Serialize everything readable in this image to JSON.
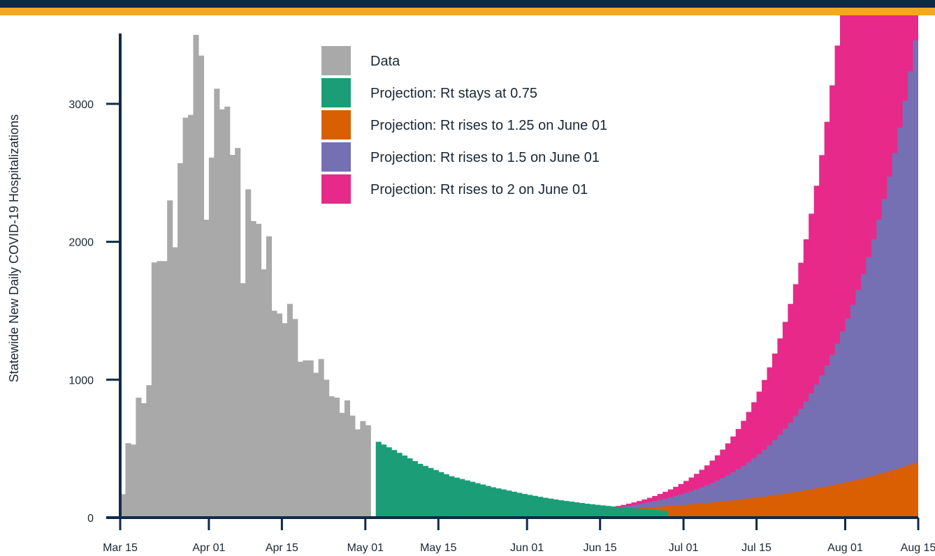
{
  "chart_data": {
    "type": "bar",
    "title": "",
    "xlabel": "",
    "ylabel": "Statewide New Daily COVID-19 Hospitalizations",
    "ylim": [
      0,
      3500
    ],
    "yticks": [
      0,
      1000,
      2000,
      3000
    ],
    "xlim": [
      "2020-03-15",
      "2020-08-15"
    ],
    "xticks": [
      {
        "date": "2020-03-15",
        "label": "Mar 15"
      },
      {
        "date": "2020-04-01",
        "label": "Apr 01"
      },
      {
        "date": "2020-04-15",
        "label": "Apr 15"
      },
      {
        "date": "2020-05-01",
        "label": "May 01"
      },
      {
        "date": "2020-05-15",
        "label": "May 15"
      },
      {
        "date": "2020-06-01",
        "label": "Jun 01"
      },
      {
        "date": "2020-06-15",
        "label": "Jun 15"
      },
      {
        "date": "2020-07-01",
        "label": "Jul 01"
      },
      {
        "date": "2020-07-15",
        "label": "Jul 15"
      },
      {
        "date": "2020-08-01",
        "label": "Aug 01"
      },
      {
        "date": "2020-08-15",
        "label": "Aug 15"
      }
    ],
    "grid": false,
    "legend_position": "top-center",
    "stacked_overlay": true,
    "series": [
      {
        "name": "Data",
        "color": "#a9a9a9",
        "x_start": "2020-03-15",
        "values": [
          170,
          540,
          530,
          870,
          830,
          960,
          1850,
          1860,
          1860,
          2300,
          1960,
          2570,
          2900,
          2920,
          3500,
          3350,
          2160,
          2610,
          3110,
          2960,
          2980,
          2630,
          2680,
          1700,
          2380,
          2150,
          2130,
          1800,
          2040,
          1500,
          1480,
          1410,
          1550,
          1440,
          1130,
          1140,
          1140,
          1050,
          1150,
          1000,
          880,
          870,
          760,
          850,
          740,
          640,
          700,
          670
        ]
      },
      {
        "name": "Projection: Rt stays at 0.75",
        "color": "#1b9e77",
        "x_start": "2020-05-03",
        "values": [
          550,
          530,
          510,
          490,
          470,
          450,
          430,
          410,
          390,
          375,
          360,
          345,
          330,
          315,
          300,
          290,
          280,
          270,
          260,
          250,
          240,
          230,
          220,
          212,
          204,
          196,
          188,
          180,
          172,
          165,
          158,
          151,
          144,
          138,
          132,
          126,
          121,
          116,
          111,
          106,
          101,
          97,
          93,
          89,
          85,
          81,
          77,
          74,
          71,
          68,
          65,
          62,
          59,
          56,
          53,
          50
        ]
      },
      {
        "name": "Projection: Rt rises to 1.25 on June 01",
        "color": "#d95f02",
        "x_start": "2020-06-12",
        "x_end": "2020-08-15",
        "start_value": 50,
        "end_value": 410
      },
      {
        "name": "Projection: Rt rises to 1.5 on June 01",
        "color": "#7570b3",
        "x_start": "2020-06-12",
        "x_end": "2020-08-15",
        "start_value": 50,
        "end_value": 3700
      },
      {
        "name": "Projection: Rt rises to 2 on June 01",
        "color": "#e7298a",
        "x_start": "2020-06-12",
        "x_end": "2020-08-15",
        "start_value": 50,
        "end_value": 14000
      }
    ]
  }
}
